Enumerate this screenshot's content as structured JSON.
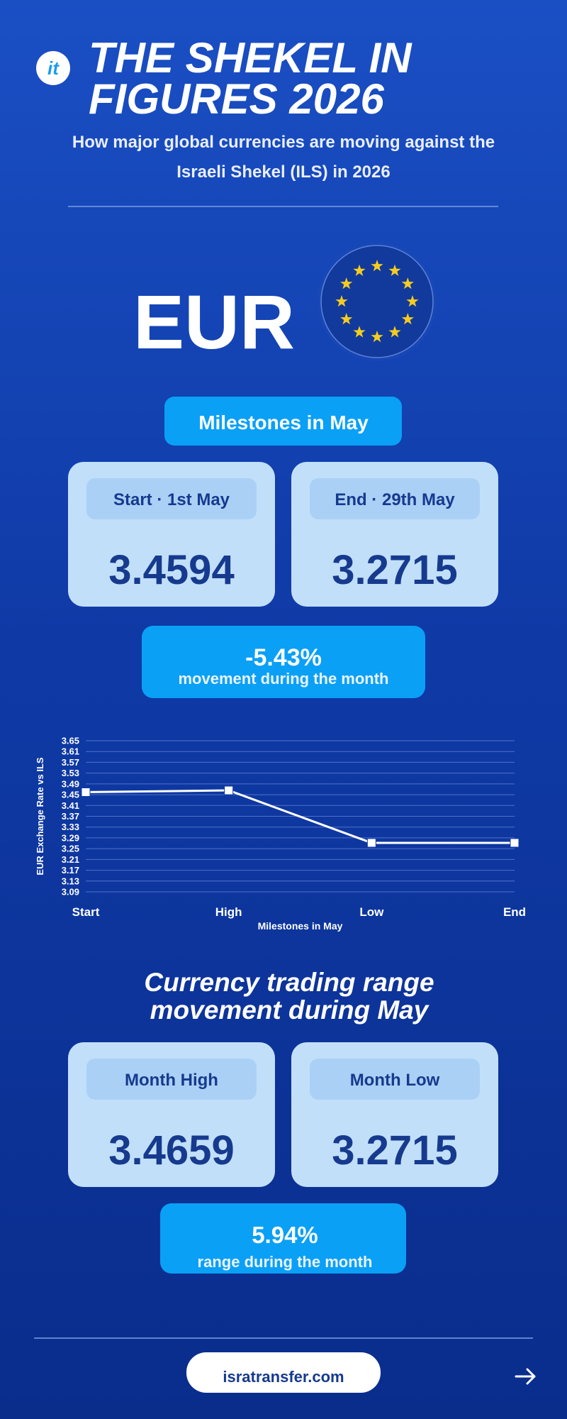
{
  "header": {
    "logo": "it",
    "title_lines": [
      "THE SHEKEL IN",
      "FIGURES 2026"
    ],
    "subtitle_lines": [
      "How major global currencies are moving against the",
      "Israeli Shekel (ILS) in 2026"
    ]
  },
  "currency": "EUR",
  "milestones": {
    "title": "Milestones in May",
    "cards": [
      {
        "label": "Start · 1st May",
        "value": "3.4594"
      },
      {
        "label": "End · 29th May",
        "value": "3.2715"
      }
    ],
    "change": {
      "value": "-5.43%",
      "label": "movement during the month"
    }
  },
  "chart_data": {
    "type": "line",
    "categories": [
      "Start",
      "High",
      "Low",
      "End"
    ],
    "values": [
      3.4594,
      3.4659,
      3.2715,
      3.2715
    ],
    "color": "#ffffff",
    "xlabel": "Milestones in May",
    "ylabel": "EUR Exchange Rate vs ILS",
    "ylim": [
      3.09,
      3.65
    ],
    "yticks": [
      3.09,
      3.13,
      3.17,
      3.21,
      3.25,
      3.29,
      3.33,
      3.37,
      3.41,
      3.45,
      3.49,
      3.53,
      3.57,
      3.61,
      3.65
    ],
    "grid": true
  },
  "range": {
    "title_lines": [
      "Currency trading range",
      "movement during May"
    ],
    "cards": [
      {
        "label": "Month High",
        "value": "3.4659"
      },
      {
        "label": "Month Low",
        "value": "3.2715"
      }
    ],
    "change": {
      "value": "5.94%",
      "label": "range during the month"
    }
  },
  "footer": {
    "link": "isratransfer.com"
  }
}
